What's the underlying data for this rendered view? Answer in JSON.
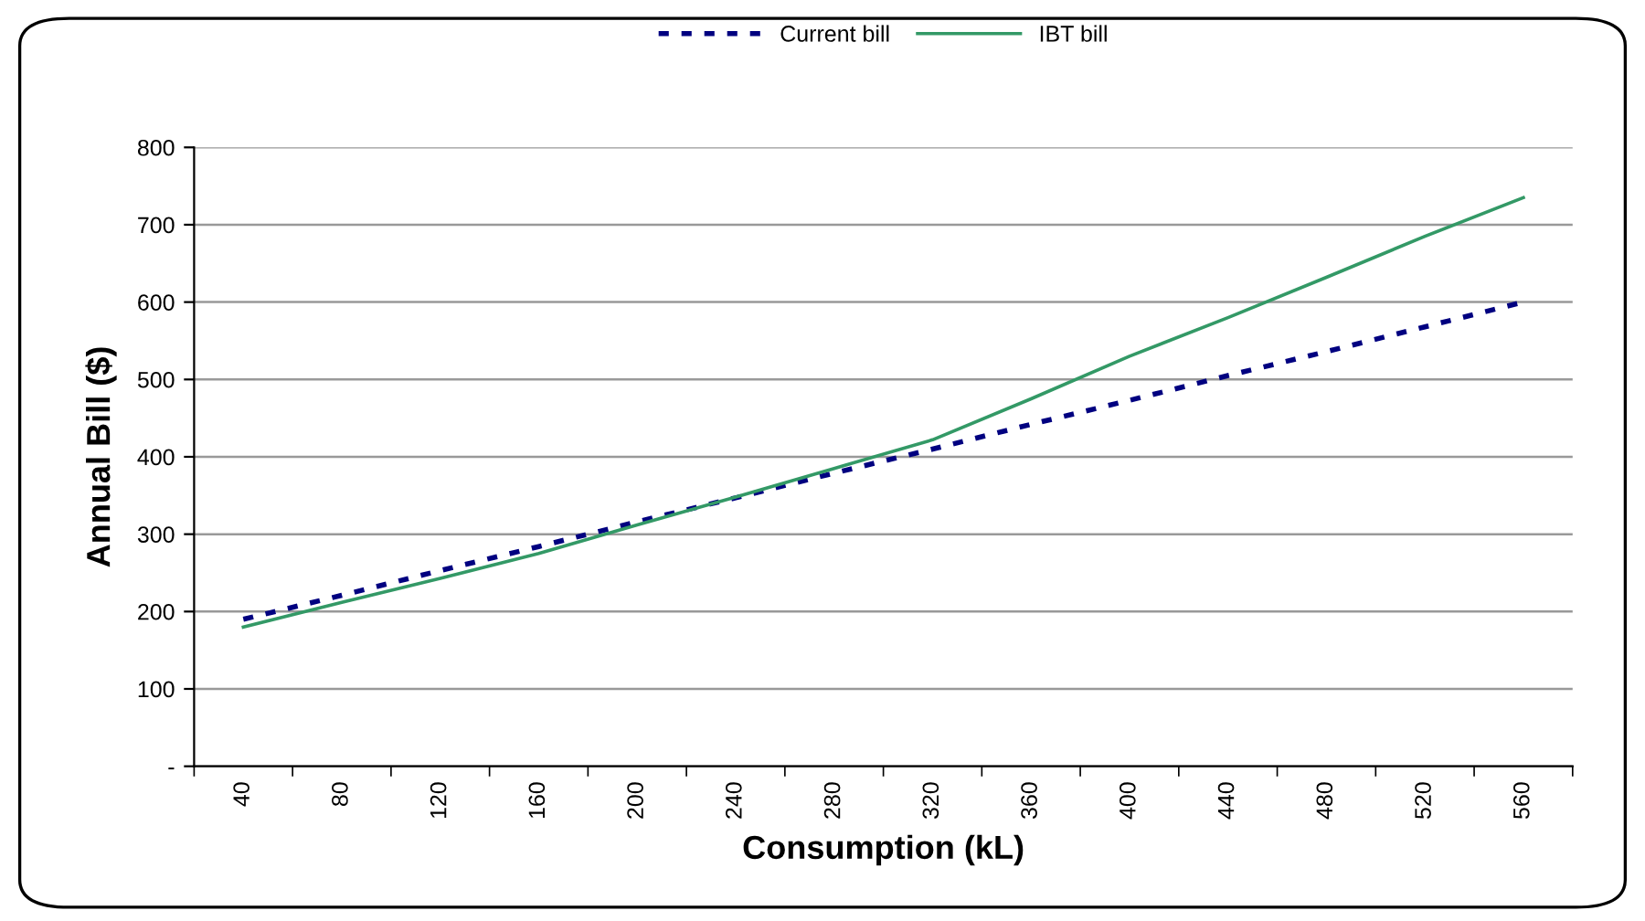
{
  "chart_data": {
    "type": "line",
    "xlabel": "Consumption (kL)",
    "ylabel": "Annual Bill ($)",
    "categories": [
      "40",
      "80",
      "120",
      "160",
      "200",
      "240",
      "280",
      "320",
      "360",
      "400",
      "440",
      "480",
      "520",
      "560"
    ],
    "series": [
      {
        "name": "Current bill",
        "color": "#000080",
        "line_style": "dotted",
        "values": [
          190,
          221,
          253,
          284,
          316,
          347,
          379,
          410,
          442,
          473,
          505,
          536,
          568,
          600
        ]
      },
      {
        "name": "IBT bill",
        "color": "#339966",
        "line_style": "solid",
        "values": [
          180,
          212,
          243,
          275,
          312,
          348,
          385,
          422,
          475,
          530,
          580,
          632,
          685,
          735
        ]
      }
    ],
    "ylim": [
      0,
      800
    ],
    "yticks": [
      {
        "value": 0,
        "label": "-"
      },
      100,
      200,
      300,
      400,
      500,
      600,
      700,
      800
    ],
    "grid": "y",
    "legend": "top",
    "marker": "none"
  }
}
